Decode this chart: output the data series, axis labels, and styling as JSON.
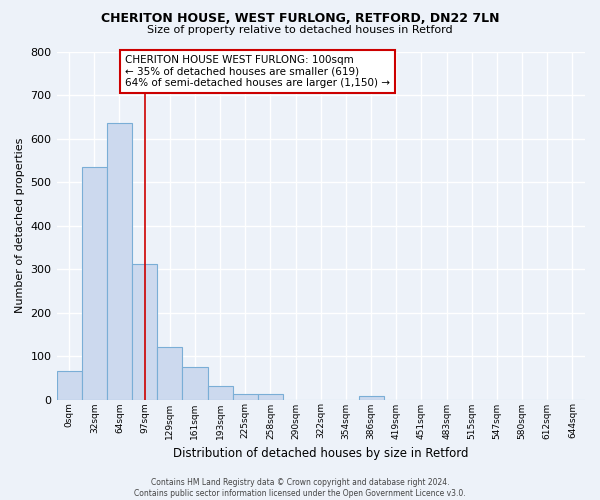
{
  "title": "CHERITON HOUSE, WEST FURLONG, RETFORD, DN22 7LN",
  "subtitle": "Size of property relative to detached houses in Retford",
  "xlabel": "Distribution of detached houses by size in Retford",
  "ylabel": "Number of detached properties",
  "bar_color": "#ccd9ee",
  "bar_edge_color": "#7aaed6",
  "categories": [
    "0sqm",
    "32sqm",
    "64sqm",
    "97sqm",
    "129sqm",
    "161sqm",
    "193sqm",
    "225sqm",
    "258sqm",
    "290sqm",
    "322sqm",
    "354sqm",
    "386sqm",
    "419sqm",
    "451sqm",
    "483sqm",
    "515sqm",
    "547sqm",
    "580sqm",
    "612sqm",
    "644sqm"
  ],
  "values": [
    65,
    535,
    635,
    312,
    120,
    75,
    32,
    12,
    12,
    0,
    0,
    0,
    8,
    0,
    0,
    0,
    0,
    0,
    0,
    0,
    0
  ],
  "ylim": [
    0,
    800
  ],
  "yticks": [
    0,
    100,
    200,
    300,
    400,
    500,
    600,
    700,
    800
  ],
  "annotation_title": "CHERITON HOUSE WEST FURLONG: 100sqm",
  "annotation_line1": "← 35% of detached houses are smaller (619)",
  "annotation_line2": "64% of semi-detached houses are larger (1,150) →",
  "annotation_box_color": "#ffffff",
  "annotation_box_edge": "#cc0000",
  "red_line_x": 3,
  "footer1": "Contains HM Land Registry data © Crown copyright and database right 2024.",
  "footer2": "Contains public sector information licensed under the Open Government Licence v3.0.",
  "background_color": "#edf2f9",
  "grid_color": "#ffffff"
}
